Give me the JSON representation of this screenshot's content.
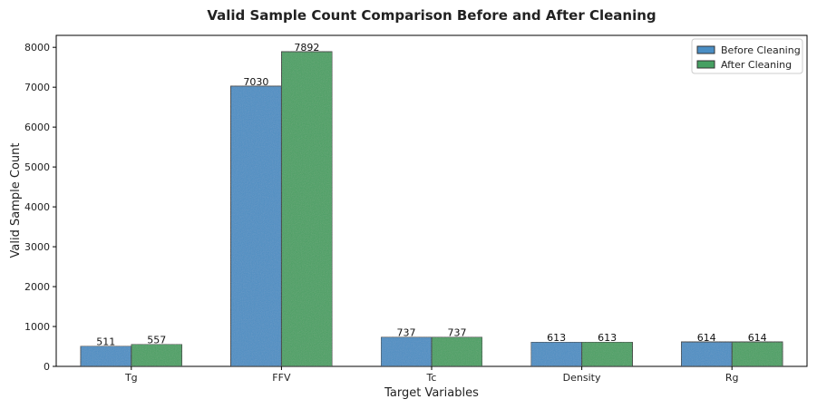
{
  "chart_data": {
    "type": "bar",
    "title": "Valid Sample Count Comparison Before and After Cleaning",
    "xlabel": "Target Variables",
    "ylabel": "Valid Sample Count",
    "categories": [
      "Tg",
      "FFV",
      "Tc",
      "Density",
      "Rg"
    ],
    "series": [
      {
        "name": "Before Cleaning",
        "values": [
          511,
          7030,
          737,
          613,
          614
        ],
        "color": "#4a8ec4"
      },
      {
        "name": "After Cleaning",
        "values": [
          557,
          7892,
          737,
          613,
          614
        ],
        "color": "#46a062"
      }
    ],
    "ylim": [
      0,
      8300
    ],
    "yticks": [
      0,
      1000,
      2000,
      3000,
      4000,
      5000,
      6000,
      7000,
      8000
    ],
    "legend_position": "top-right",
    "grid": false
  }
}
